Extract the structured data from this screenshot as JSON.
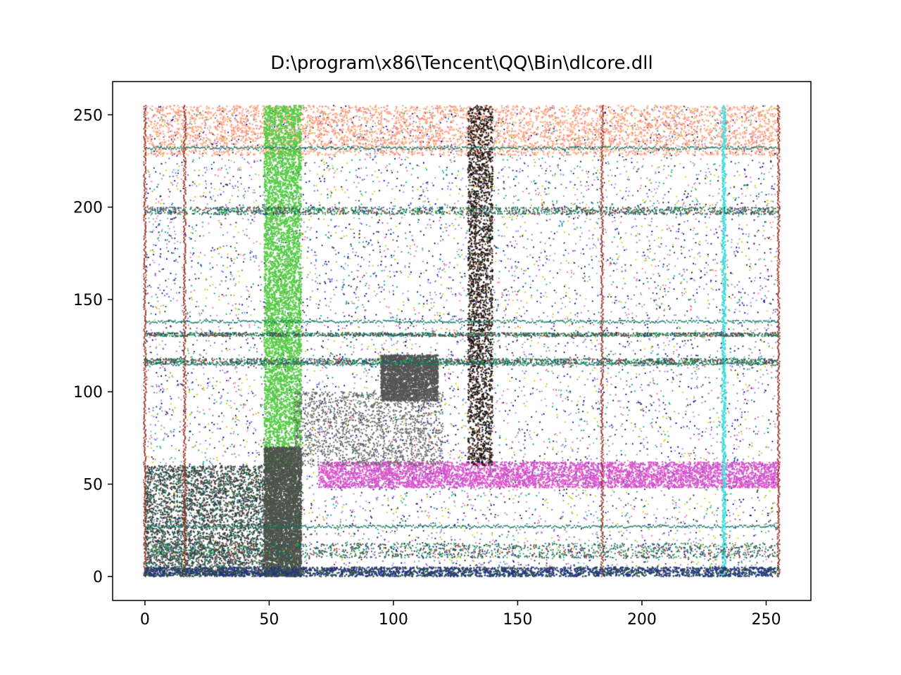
{
  "chart_data": {
    "type": "scatter",
    "title": "D:\\program\\x86\\Tencent\\QQ\\Bin\\dlcore.dll",
    "xlabel": "",
    "ylabel": "",
    "xlim": [
      -13,
      268
    ],
    "ylim": [
      -13,
      268
    ],
    "x_ticks": [
      0,
      50,
      100,
      150,
      200,
      250
    ],
    "y_ticks": [
      0,
      50,
      100,
      150,
      200,
      250
    ],
    "grid": false,
    "point_grid": {
      "x_min": 0,
      "x_max": 255,
      "y_min": 0,
      "y_max": 255
    },
    "description_colors": {
      "background_dots": [
        "#0000aa",
        "#6a5acd",
        "#8888ff",
        "#999999",
        "#cccc00",
        "#ff66aa",
        "#00aa88",
        "#222222"
      ],
      "top_band": "#ffb08a",
      "green_column": "#55cc44",
      "magenta_band": "#cc55cc",
      "cyan_line": "#44dddd",
      "dark_red_line": "#993322",
      "teal_line": "#117766",
      "dark_cluster": "#555555",
      "bottom_band": "#223388"
    },
    "features": {
      "top_band_y": [
        228,
        255
      ],
      "green_column_x": [
        48,
        63
      ],
      "magenta_band_y": [
        48,
        62
      ],
      "magenta_band_x": [
        70,
        255
      ],
      "cyan_line_x": 233,
      "dark_red_lines_x": [
        0,
        16,
        184,
        255
      ],
      "teal_lines_y": [
        27,
        115,
        138,
        232
      ],
      "dark_cluster": {
        "x": [
          95,
          118
        ],
        "y": [
          95,
          120
        ]
      },
      "dark_column_x": [
        130,
        140
      ],
      "bottom_band_y": [
        0,
        5
      ]
    }
  }
}
